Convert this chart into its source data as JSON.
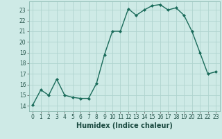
{
  "x": [
    0,
    1,
    2,
    3,
    4,
    5,
    6,
    7,
    8,
    9,
    10,
    11,
    12,
    13,
    14,
    15,
    16,
    17,
    18,
    19,
    20,
    21,
    22,
    23
  ],
  "y": [
    14.1,
    15.5,
    15.0,
    16.5,
    15.0,
    14.8,
    14.7,
    14.7,
    16.1,
    18.8,
    21.0,
    21.0,
    23.1,
    22.5,
    23.0,
    23.4,
    23.5,
    23.0,
    23.2,
    22.5,
    21.0,
    19.0,
    17.0,
    17.2
  ],
  "line_color": "#1a6b5a",
  "marker": "D",
  "marker_size": 2.0,
  "bg_color": "#ceeae6",
  "grid_color": "#b0d4cf",
  "xlabel": "Humidex (Indice chaleur)",
  "ylim": [
    13.5,
    23.8
  ],
  "xlim": [
    -0.5,
    23.5
  ],
  "yticks": [
    14,
    15,
    16,
    17,
    18,
    19,
    20,
    21,
    22,
    23
  ],
  "xticks": [
    0,
    1,
    2,
    3,
    4,
    5,
    6,
    7,
    8,
    9,
    10,
    11,
    12,
    13,
    14,
    15,
    16,
    17,
    18,
    19,
    20,
    21,
    22,
    23
  ],
  "tick_fontsize": 5.5,
  "xlabel_fontsize": 7.0,
  "linewidth": 1.0
}
